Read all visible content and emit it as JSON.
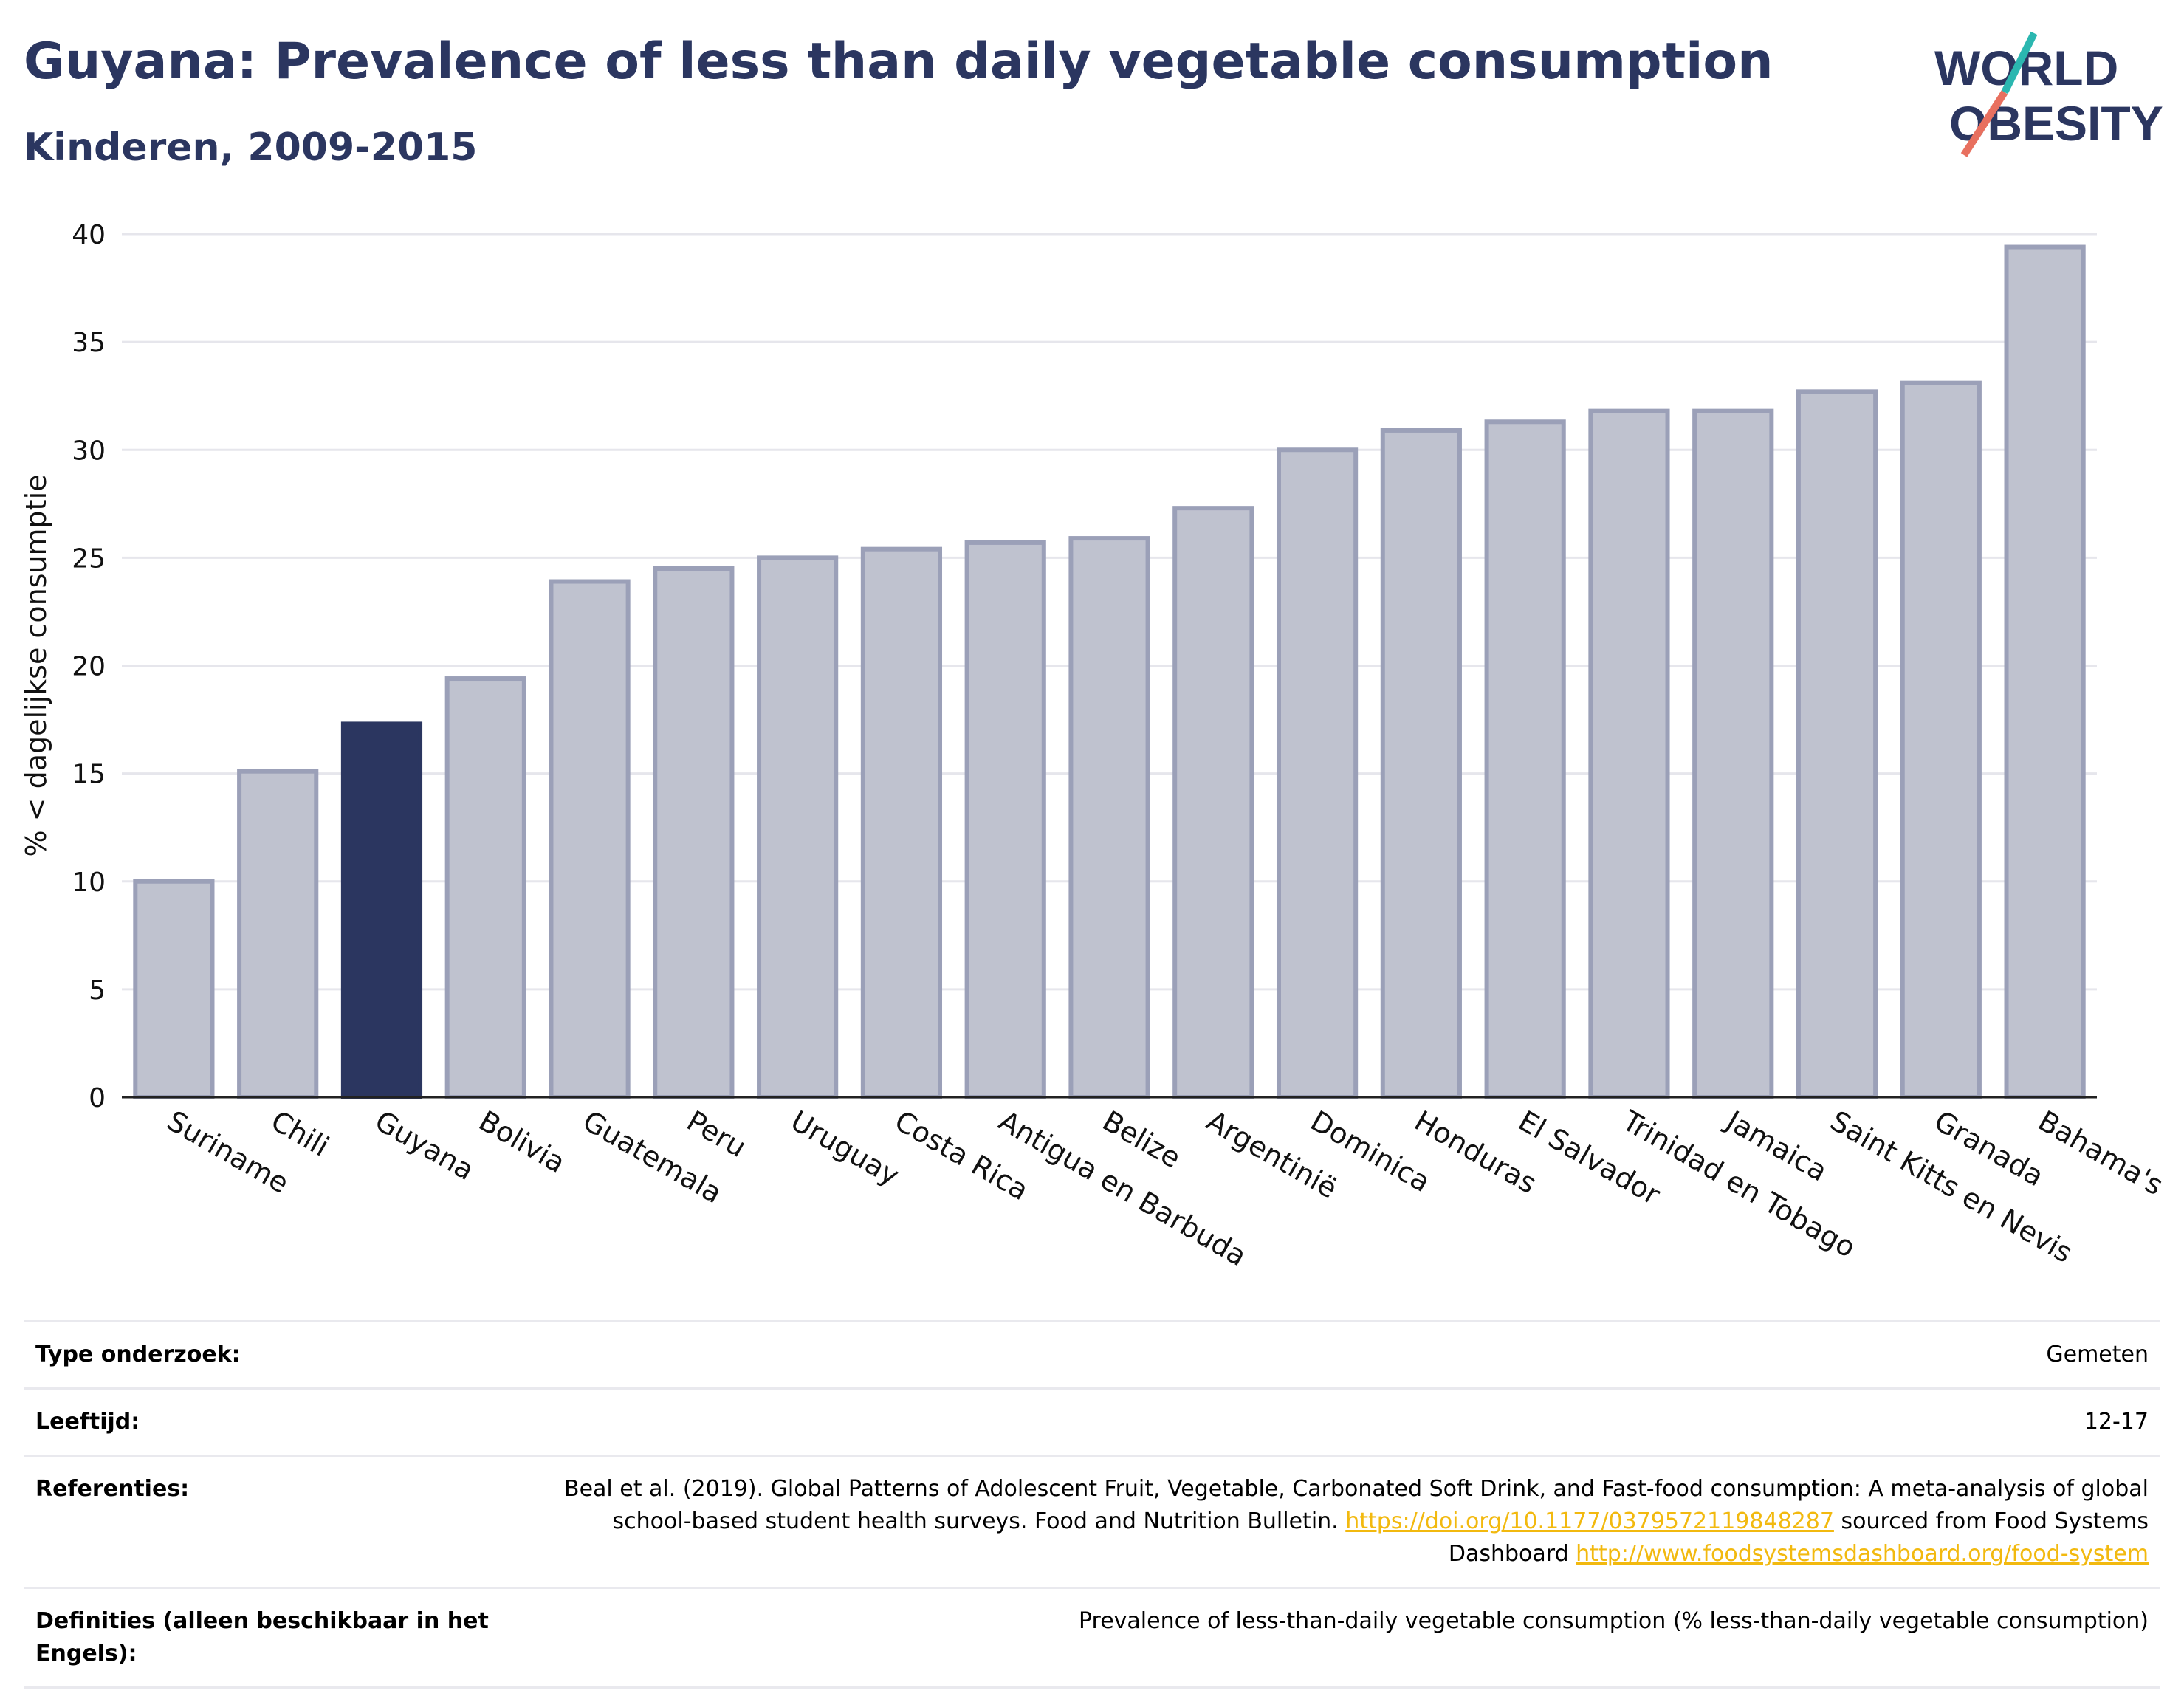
{
  "header": {
    "title": "Guyana: Prevalence of less than daily vegetable consumption",
    "subtitle": "Kinderen, 2009-2015"
  },
  "logo": {
    "line1": "WORLD",
    "line2": "OBESITY",
    "accent_colors": [
      "#2bb7b0",
      "#e8705f"
    ]
  },
  "colors": {
    "highlight": "#2b3660",
    "bar": "#bfc2cf",
    "bar_border": "#9ba0b8",
    "link": "#f2b90f"
  },
  "chart_data": {
    "type": "bar",
    "ylabel": "% < dagelijkse consumptie",
    "ylim": [
      0,
      40
    ],
    "yticks": [
      0,
      5,
      10,
      15,
      20,
      25,
      30,
      35,
      40
    ],
    "grid": true,
    "highlight": "Guyana",
    "categories": [
      "Suriname",
      "Chili",
      "Guyana",
      "Bolivia",
      "Guatemala",
      "Peru",
      "Uruguay",
      "Costa Rica",
      "Antigua en Barbuda",
      "Belize",
      "Argentinië",
      "Dominica",
      "Honduras",
      "El Salvador",
      "Trinidad en Tobago",
      "Jamaica",
      "Saint Kitts en Nevis",
      "Granada",
      "Bahama's"
    ],
    "values": [
      10.0,
      15.1,
      17.3,
      19.4,
      23.9,
      24.5,
      25.0,
      25.4,
      25.7,
      25.9,
      27.3,
      30.0,
      30.9,
      31.3,
      31.8,
      31.8,
      32.7,
      33.1,
      39.4
    ]
  },
  "meta": {
    "type_label": "Type onderzoek:",
    "type_value": "Gemeten",
    "age_label": "Leeftijd:",
    "age_value": "12-17",
    "ref_label": "Referenties:",
    "ref_text1": "Beal et al. (2019). Global Patterns of Adolescent Fruit, Vegetable, Carbonated Soft Drink, and Fast-food consumption: A meta-analysis of global school-based student health surveys. Food and Nutrition Bulletin. ",
    "ref_link1": "https://doi.org/10.1177/0379572119848287",
    "ref_text2": " sourced from Food Systems Dashboard ",
    "ref_link2": "http://www.foodsystemsdashboard.org/food-system",
    "def_label": "Definities (alleen beschikbaar in het Engels):",
    "def_value": "Prevalence of less-than-daily vegetable consumption (% less-than-daily vegetable consumption)"
  }
}
